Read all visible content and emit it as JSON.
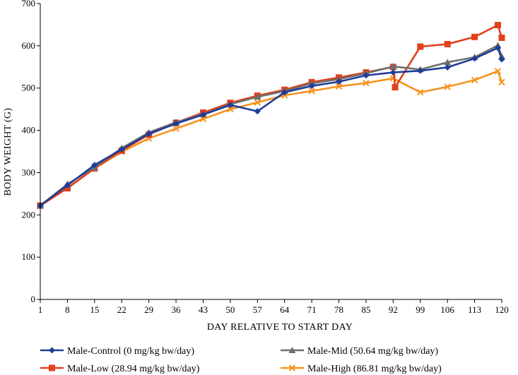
{
  "chart_data": {
    "type": "line",
    "title": "",
    "xlabel": "DAY RELATIVE TO START DAY",
    "ylabel": "BODY WEIGHT (G)",
    "ylim": [
      0,
      700
    ],
    "yticks": [
      0,
      100,
      200,
      300,
      400,
      500,
      600,
      700
    ],
    "xticks": [
      1,
      8,
      15,
      22,
      29,
      36,
      43,
      50,
      57,
      64,
      71,
      78,
      85,
      92,
      99,
      106,
      113,
      120
    ],
    "xlim": [
      1,
      120
    ],
    "grid": false,
    "legend_position": "bottom",
    "series": [
      {
        "name": "Male-Control (0 mg/kg bw/day)",
        "color": "#1f3c99",
        "marker": "diamond",
        "x": [
          1,
          8,
          15,
          22,
          29,
          36,
          43,
          50,
          57,
          64,
          71,
          78,
          85,
          92,
          99,
          106,
          113,
          119,
          120
        ],
        "y": [
          222,
          270,
          318,
          355,
          392,
          416,
          437,
          460,
          445,
          490,
          505,
          515,
          530,
          537,
          541,
          549,
          570,
          595,
          568
        ]
      },
      {
        "name": "Male-Low (28.94 mg/kg bw/day)",
        "color": "#e0411b",
        "marker": "square",
        "x": [
          1,
          8,
          15,
          22,
          29,
          36,
          43,
          50,
          57,
          64,
          71,
          78,
          85,
          92,
          92.5,
          99,
          106,
          113,
          119,
          120
        ],
        "y": [
          222,
          263,
          310,
          352,
          390,
          418,
          442,
          465,
          482,
          496,
          514,
          525,
          537,
          550,
          502,
          598,
          604,
          621,
          649,
          619
        ]
      },
      {
        "name": "Male-Mid (50.64 mg/kg bw/day)",
        "color": "#6e6e6e",
        "marker": "triangle",
        "x": [
          1,
          8,
          15,
          22,
          29,
          36,
          43,
          50,
          57,
          64,
          71,
          78,
          85,
          92,
          99,
          106,
          113,
          119,
          120
        ],
        "y": [
          222,
          273,
          312,
          358,
          395,
          419,
          438,
          462,
          479,
          493,
          511,
          521,
          535,
          551,
          544,
          561,
          573,
          601,
          575
        ]
      },
      {
        "name": "Male-High (86.81 mg/kg bw/day)",
        "color": "#f5931e",
        "marker": "x",
        "x": [
          1,
          8,
          15,
          22,
          29,
          36,
          43,
          50,
          57,
          64,
          71,
          78,
          85,
          92,
          99,
          106,
          113,
          119,
          120
        ],
        "y": [
          222,
          264,
          310,
          349,
          381,
          404,
          427,
          450,
          466,
          483,
          493,
          504,
          512,
          523,
          490,
          503,
          519,
          540,
          514
        ]
      }
    ]
  }
}
